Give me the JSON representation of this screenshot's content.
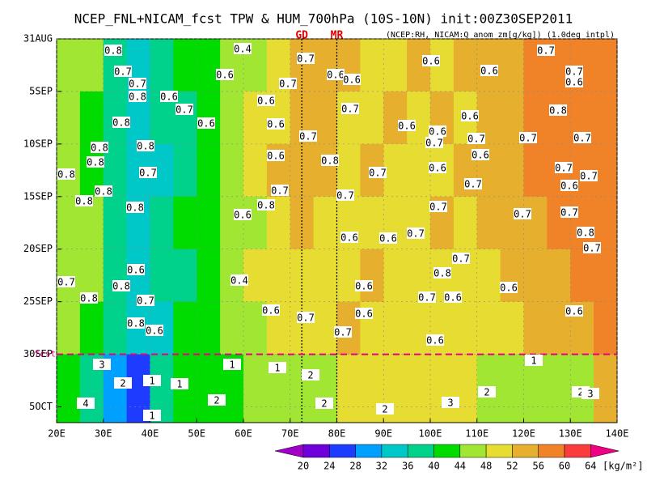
{
  "chart_data": {
    "type": "heatmap",
    "title": "NCEP_FNL+NICAM_fcst TPW & HUM_700hPa (10S-10N) init:00Z30SEP2011",
    "subtitle": "(NCEP:RH, NICAM:Q anom zm[g/kg]) (1.0deg intpl)",
    "xlim": [
      20,
      140
    ],
    "ylim": [
      0,
      36.5
    ],
    "xticks": [
      {
        "value": 20,
        "label": "20E"
      },
      {
        "value": 30,
        "label": "30E"
      },
      {
        "value": 40,
        "label": "40E"
      },
      {
        "value": 50,
        "label": "50E"
      },
      {
        "value": 60,
        "label": "60E"
      },
      {
        "value": 70,
        "label": "70E"
      },
      {
        "value": 80,
        "label": "80E"
      },
      {
        "value": 90,
        "label": "90E"
      },
      {
        "value": 100,
        "label": "100E"
      },
      {
        "value": 110,
        "label": "110E"
      },
      {
        "value": 120,
        "label": "120E"
      },
      {
        "value": 130,
        "label": "130E"
      },
      {
        "value": 140,
        "label": "140E"
      }
    ],
    "yticks": [
      {
        "value": 0,
        "label": "31AUG"
      },
      {
        "value": 5,
        "label": "5SEP"
      },
      {
        "value": 10,
        "label": "10SEP"
      },
      {
        "value": 15,
        "label": "15SEP"
      },
      {
        "value": 20,
        "label": "20SEP"
      },
      {
        "value": 25,
        "label": "25SEP"
      },
      {
        "value": 30,
        "label": "30SEP"
      },
      {
        "value": 35,
        "label": "5OCT"
      }
    ],
    "lon_edges": [
      20,
      25,
      30,
      35,
      40,
      45,
      50,
      55,
      60,
      65,
      70,
      75,
      80,
      85,
      90,
      95,
      100,
      105,
      110,
      115,
      120,
      125,
      130,
      135,
      140
    ],
    "time_edges": [
      0,
      5,
      10,
      15,
      20,
      25,
      30,
      36.5
    ],
    "field": [
      [
        46,
        44,
        38,
        34,
        36,
        40,
        42,
        44,
        46,
        50,
        52,
        54,
        52,
        50,
        50,
        52,
        50,
        52,
        54,
        54,
        56,
        56,
        58,
        58
      ],
      [
        44,
        42,
        38,
        34,
        36,
        38,
        42,
        44,
        48,
        50,
        54,
        52,
        50,
        50,
        52,
        50,
        52,
        50,
        52,
        54,
        56,
        58,
        58,
        56
      ],
      [
        44,
        42,
        38,
        34,
        34,
        38,
        42,
        44,
        48,
        52,
        54,
        52,
        50,
        52,
        50,
        50,
        50,
        52,
        52,
        54,
        56,
        56,
        58,
        58
      ],
      [
        46,
        44,
        36,
        34,
        36,
        40,
        42,
        44,
        46,
        50,
        52,
        50,
        50,
        50,
        50,
        50,
        52,
        50,
        52,
        52,
        54,
        56,
        58,
        58
      ],
      [
        44,
        44,
        38,
        34,
        36,
        38,
        42,
        44,
        48,
        50,
        50,
        50,
        50,
        52,
        50,
        50,
        50,
        48,
        50,
        52,
        54,
        54,
        56,
        58
      ],
      [
        44,
        42,
        36,
        32,
        34,
        40,
        42,
        44,
        46,
        48,
        50,
        50,
        52,
        50,
        50,
        50,
        50,
        50,
        48,
        50,
        52,
        52,
        54,
        56
      ],
      [
        40,
        38,
        30,
        26,
        36,
        40,
        42,
        42,
        44,
        46,
        44,
        46,
        48,
        48,
        50,
        48,
        48,
        48,
        46,
        46,
        44,
        44,
        46,
        52
      ]
    ],
    "levels": [
      20,
      24,
      28,
      32,
      36,
      40,
      44,
      48,
      52,
      56,
      60,
      64
    ],
    "colors": [
      "#a000c8",
      "#6e00dc",
      "#1e3cff",
      "#00a0ff",
      "#00c8c8",
      "#00d28c",
      "#00dc00",
      "#a0e632",
      "#e6dc32",
      "#e6af2d",
      "#f08228",
      "#fa3c3c",
      "#f00082"
    ],
    "unit": "[kg/m²]",
    "markers": [
      {
        "label": "GD",
        "lon": 72.5
      },
      {
        "label": "MR",
        "lon": 80
      }
    ],
    "forecast_label": "fcst",
    "forecast_day": 30,
    "contour_labels": [
      0.8,
      0.4,
      0.7,
      0.7,
      0.7,
      0.6,
      0.7,
      0.6,
      0.6,
      0.6,
      0.6,
      0.7,
      0.6,
      0.7,
      0.8,
      0.6,
      0.7,
      0.6,
      0.6,
      0.7,
      0.8,
      0.8,
      0.6,
      0.7,
      0.6,
      0.6,
      0.7,
      0.6,
      0.7,
      0.7,
      0.7,
      0.8,
      0.8,
      0.8,
      0.6,
      0.8,
      0.6,
      0.8,
      0.7,
      0.7,
      0.6,
      0.7,
      0.7,
      0.8,
      0.8,
      0.7,
      0.8,
      0.7,
      0.7,
      0.6,
      0.8,
      0.6,
      0.7,
      0.7,
      0.7,
      0.8,
      0.6,
      0.6,
      0.7,
      0.7,
      0.7,
      0.6,
      0.8,
      0.7,
      0.8,
      0.4,
      0.6,
      0.6,
      0.7,
      0.8,
      0.7,
      0.6,
      0.6,
      0.7,
      0.6,
      0.6,
      0.8,
      0.6,
      0.7,
      0.6,
      3,
      1,
      1,
      1,
      2,
      1,
      1,
      2,
      2,
      2,
      2,
      3,
      2,
      2,
      3,
      4,
      1
    ]
  }
}
